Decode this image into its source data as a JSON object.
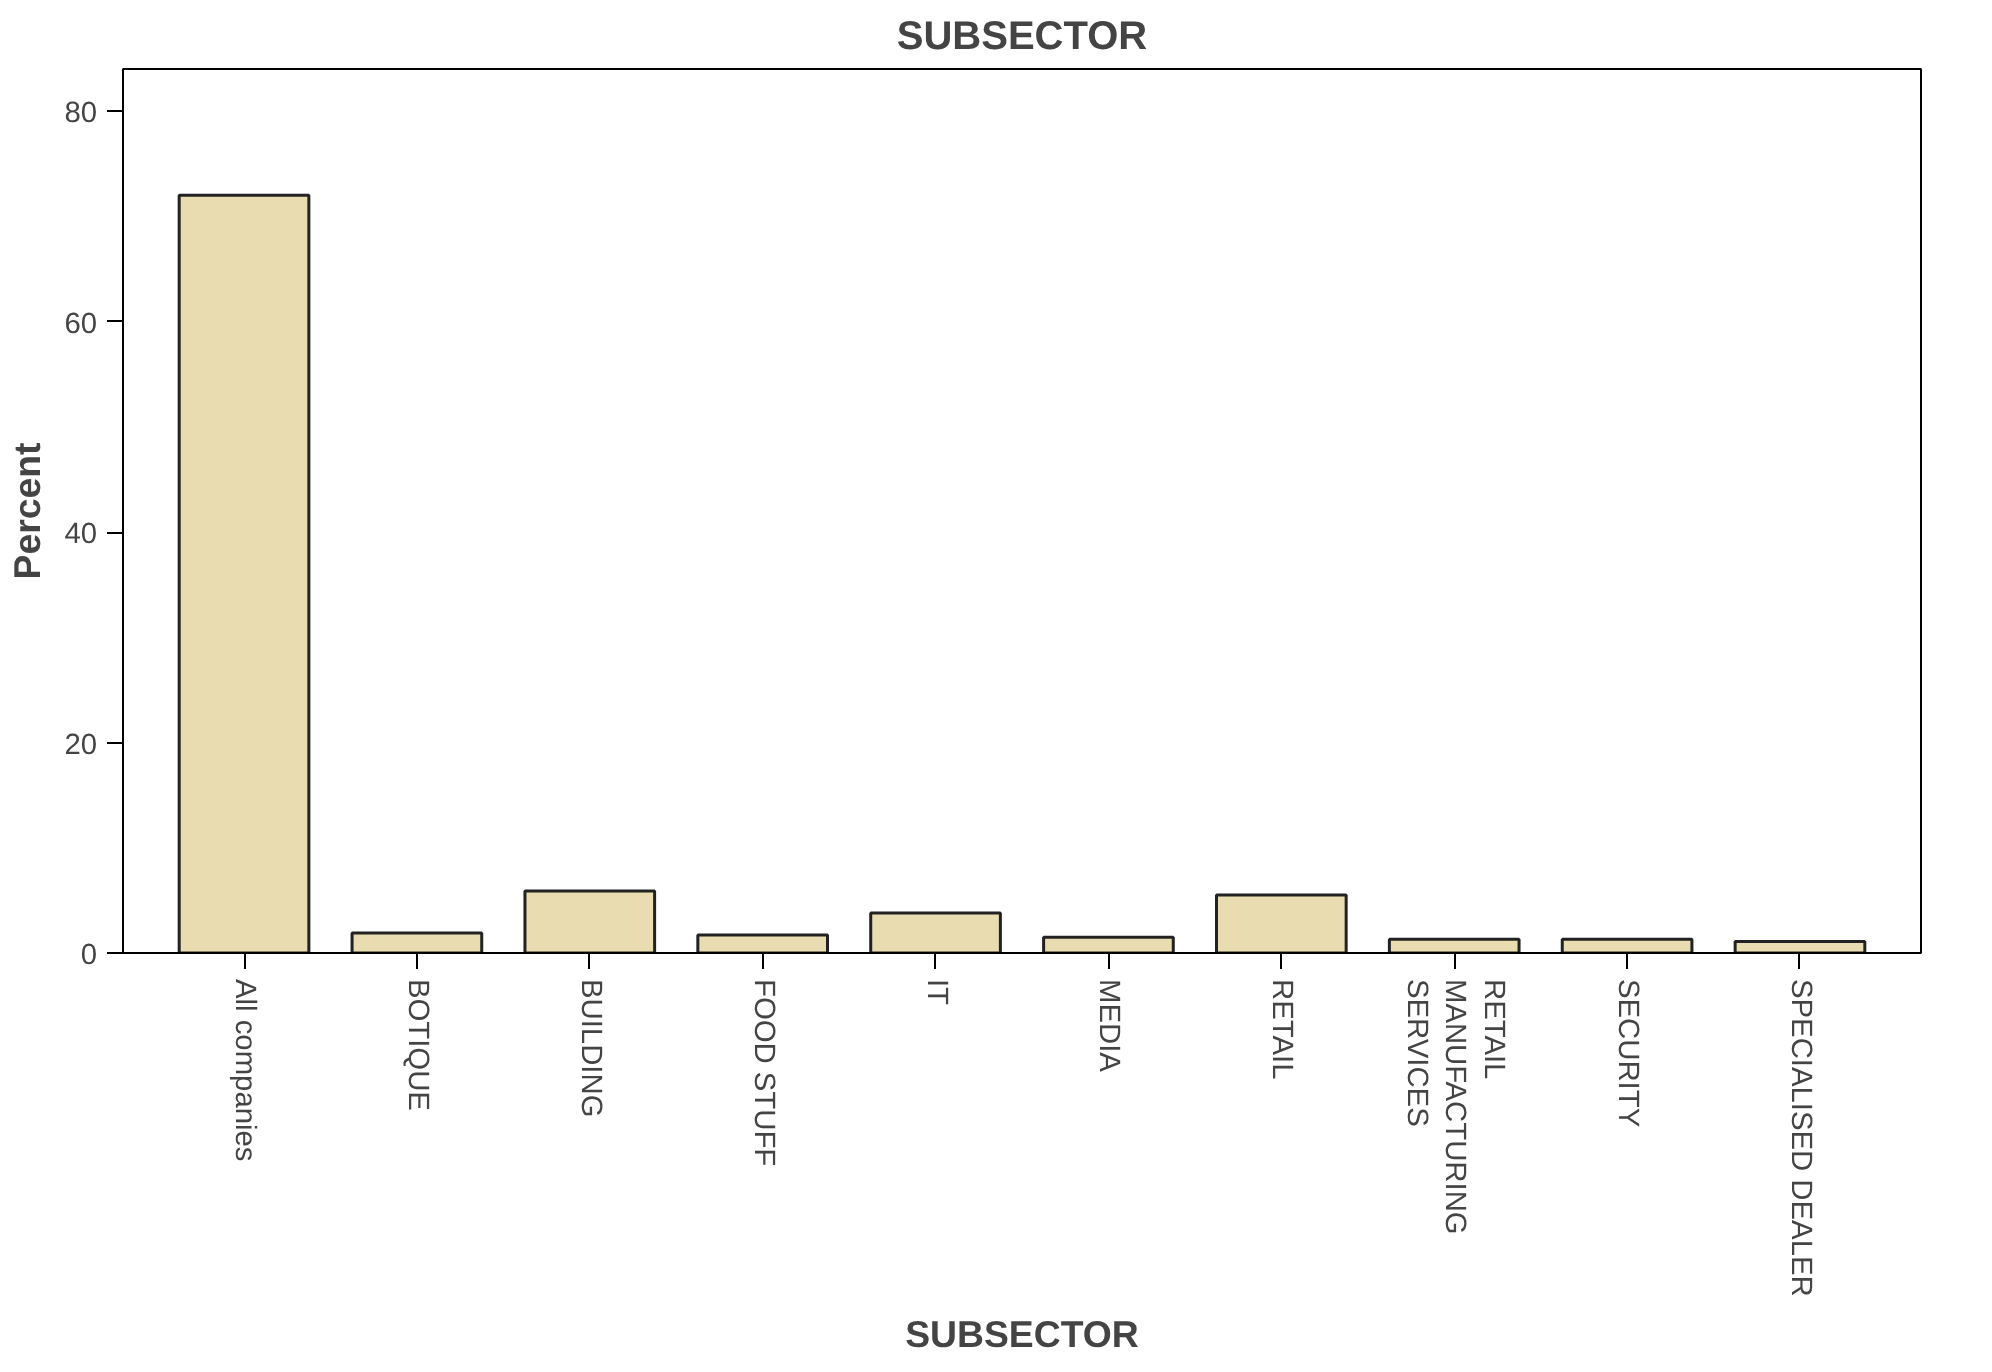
{
  "chart_data": {
    "type": "bar",
    "title": "SUBSECTOR",
    "xlabel": "SUBSECTOR",
    "ylabel": "Percent",
    "categories": [
      "All companies",
      "BOTIQUE",
      "BUILDING",
      "FOOD STUFF",
      "IT",
      "MEDIA",
      "RETAIL",
      "RETAIL MANUFACTURING SERVICES",
      "SECURITY",
      "SPECIALISED DEALER"
    ],
    "values": [
      72,
      1.9,
      5.9,
      1.7,
      3.8,
      1.5,
      5.5,
      1.3,
      1.3,
      1.1
    ],
    "color": "#e8dcb0",
    "ylim": [
      0,
      84
    ],
    "yticks": [
      0,
      20,
      40,
      60,
      80
    ],
    "grid": false
  }
}
